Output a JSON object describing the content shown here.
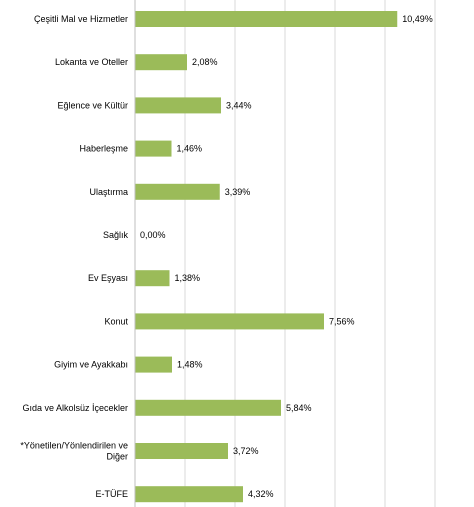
{
  "chart_data": {
    "type": "bar",
    "orientation": "horizontal",
    "categories": [
      "Çeşitli Mal ve Hizmetler",
      "Lokanta ve Oteller",
      "Eğlence ve Kültür",
      "Haberleşme",
      "Ulaştırma",
      "Sağlık",
      "Ev Eşyası",
      "Konut",
      "Giyim ve Ayakkabı",
      "Gıda ve Alkolsüz İçecekler",
      "*Yönetilen/Yönlendirilen ve Diğer",
      "E-TÜFE"
    ],
    "category_lines": [
      [
        "Çeşitli Mal ve Hizmetler"
      ],
      [
        "Lokanta ve Oteller"
      ],
      [
        "Eğlence ve Kültür"
      ],
      [
        "Haberleşme"
      ],
      [
        "Ulaştırma"
      ],
      [
        "Sağlık"
      ],
      [
        "Ev Eşyası"
      ],
      [
        "Konut"
      ],
      [
        "Giyim ve Ayakkabı"
      ],
      [
        "Gıda ve Alkolsüz İçecekler"
      ],
      [
        "*Yönetilen/Yönlendirilen ve",
        "Diğer"
      ],
      [
        "E-TÜFE"
      ]
    ],
    "values": [
      10.49,
      2.08,
      3.44,
      1.46,
      3.39,
      0.0,
      1.38,
      7.56,
      1.48,
      5.84,
      3.72,
      4.32
    ],
    "value_labels": [
      "10,49%",
      "2,08%",
      "3,44%",
      "1,46%",
      "3,39%",
      "0,00%",
      "1,38%",
      "7,56%",
      "1,48%",
      "5,84%",
      "3,72%",
      "4,32%"
    ],
    "xlim": [
      0,
      12
    ],
    "grid": true,
    "bar_color": "#9bbb59",
    "title": "",
    "xlabel": "",
    "ylabel": ""
  }
}
